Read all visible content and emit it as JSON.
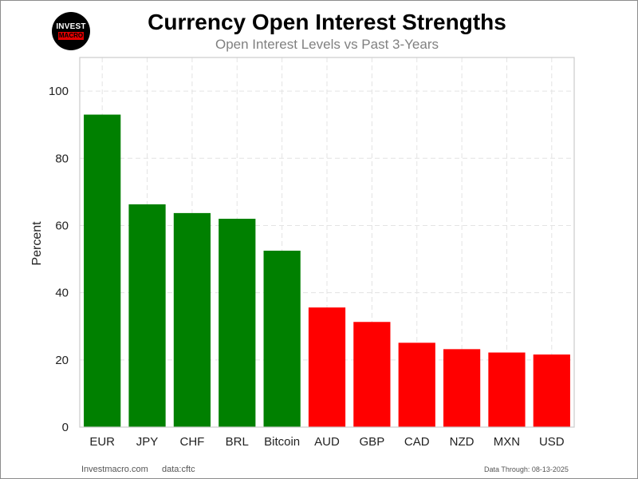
{
  "logo": {
    "line1": "INVEST",
    "line2": "MACRO"
  },
  "footer": {
    "site": "Investmacro.com",
    "source": "data:cftc",
    "through": "Data Through: 08-13-2025"
  },
  "chart_data": {
    "type": "bar",
    "title": "Currency Open Interest Strengths",
    "subtitle": "Open Interest Levels vs Past 3-Years",
    "xlabel": "",
    "ylabel": "Percent",
    "ylim": [
      0,
      110
    ],
    "yticks": [
      0,
      20,
      40,
      60,
      80,
      100
    ],
    "grid": true,
    "categories": [
      "EUR",
      "JPY",
      "CHF",
      "BRL",
      "Bitcoin",
      "AUD",
      "GBP",
      "CAD",
      "NZD",
      "MXN",
      "USD"
    ],
    "values": [
      93.0,
      66.3,
      63.7,
      62.0,
      52.5,
      35.6,
      31.3,
      25.1,
      23.2,
      22.2,
      21.6
    ],
    "colors": [
      "#008000",
      "#008000",
      "#008000",
      "#008000",
      "#008000",
      "#ff0000",
      "#ff0000",
      "#ff0000",
      "#ff0000",
      "#ff0000",
      "#ff0000"
    ]
  }
}
